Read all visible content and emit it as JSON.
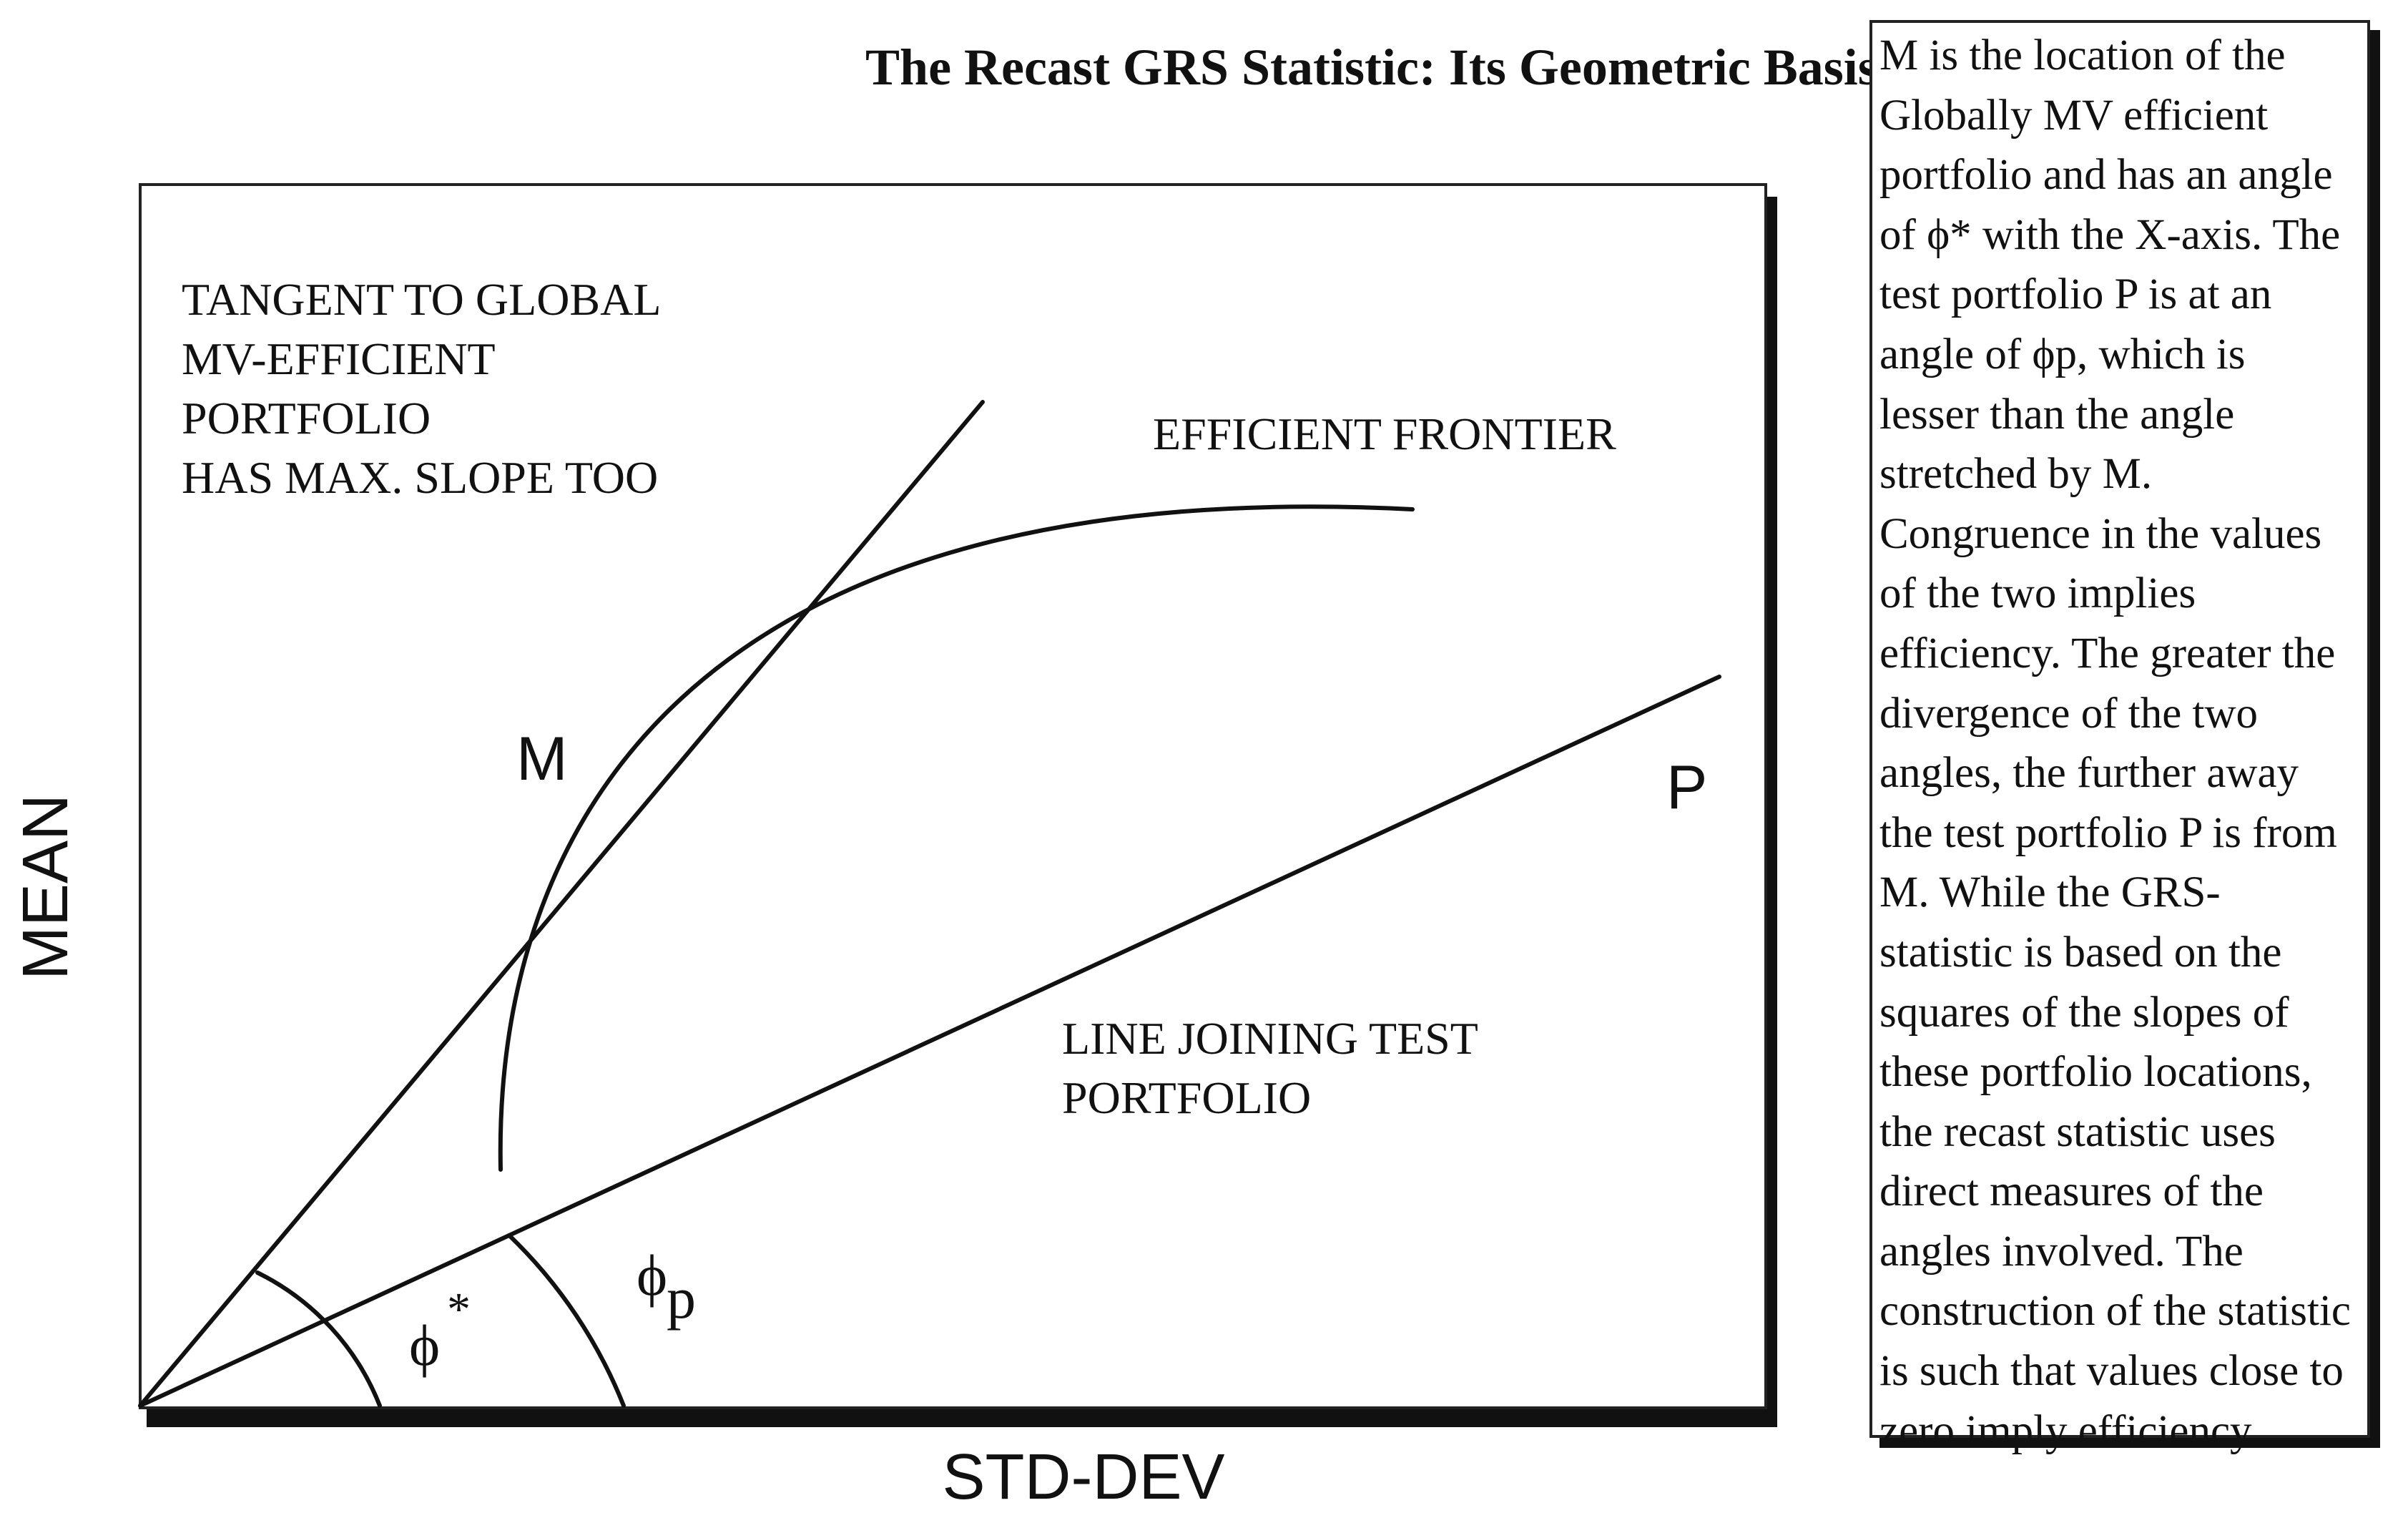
{
  "title": "The Recast GRS Statistic:  Its Geometric Basis",
  "axes": {
    "y_label": "MEAN",
    "x_label": "STD-DEV"
  },
  "labels": {
    "tangent_lines": [
      "TANGENT TO GLOBAL",
      "MV-EFFICIENT",
      "PORTFOLIO",
      "HAS MAX. SLOPE  TOO"
    ],
    "frontier": "EFFICIENT FRONTIER",
    "test_line": [
      "LINE JOINING TEST",
      "PORTFOLIO"
    ],
    "point_m": "M",
    "point_p": "P",
    "angle_star_symbol": "ϕ",
    "angle_star_sup": "*",
    "angle_p_symbol": "ϕ",
    "angle_p_sub": "p"
  },
  "note_lines": [
    "M is the location of the",
    "Globally MV efficient",
    "portfolio and has an angle",
    "of ϕ* with the X-axis.  The",
    "test portfolio P is at an",
    "angle of  ϕp, which is",
    "lesser than the angle",
    "stretched by M.",
    "Congruence in the values",
    "of the two implies",
    "efficiency.  The greater the",
    "divergence of the two",
    "angles, the further away",
    "the test portfolio P is from",
    "M.  While the GRS-",
    "statistic is based on the",
    "squares of the slopes of",
    "these portfolio locations,",
    "the recast statistic uses",
    "direct measures of the",
    "angles involved.  The",
    "construction of the statistic",
    "is such that values close to",
    "zero imply efficiency."
  ]
}
